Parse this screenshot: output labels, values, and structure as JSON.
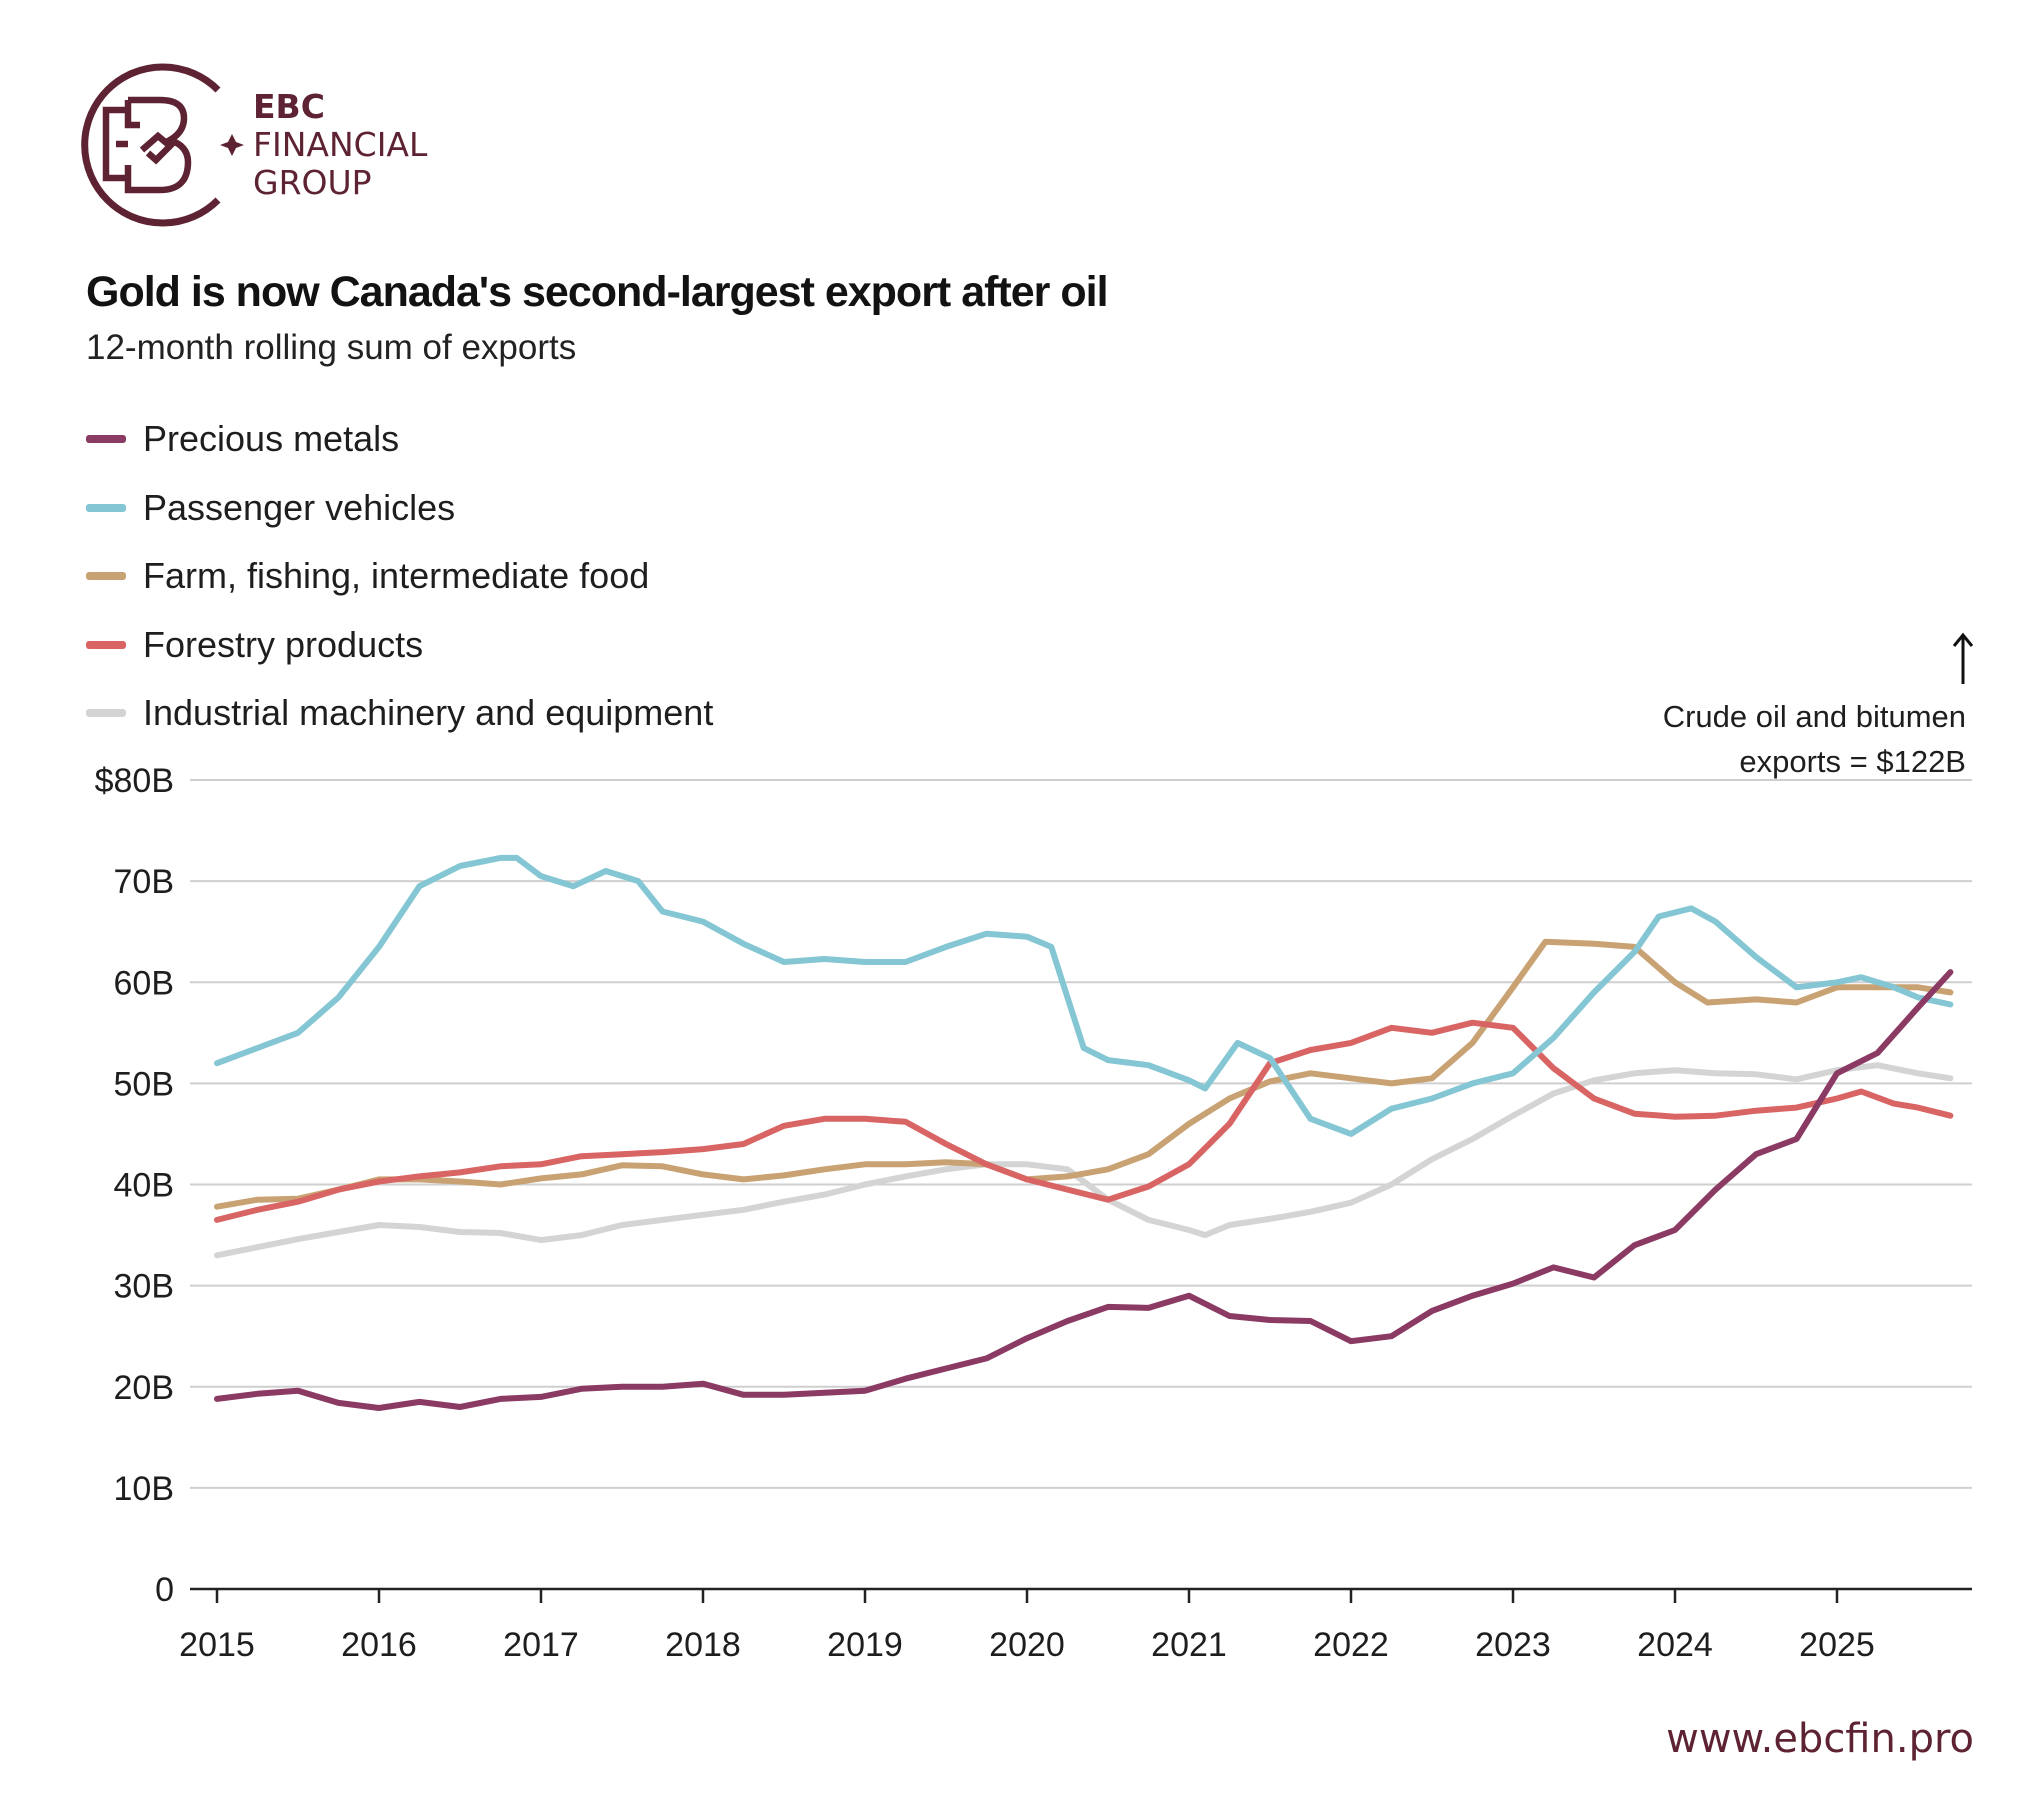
{
  "brand": {
    "line1": "EBC",
    "line2": "FINANCIAL",
    "line3": "GROUP",
    "color": "#5e2332",
    "icon": "ebc-logo-icon",
    "url": "www.ebcfin.pro"
  },
  "chart_data": {
    "type": "line",
    "title": "Gold is now Canada's second-largest export after oil",
    "subtitle": "12-month rolling sum of exports",
    "xlabel": "",
    "ylabel": "",
    "xlim": [
      2015,
      2025.85
    ],
    "ylim": [
      0,
      80
    ],
    "x_ticks": [
      2015,
      2016,
      2017,
      2018,
      2019,
      2020,
      2021,
      2022,
      2023,
      2024,
      2025
    ],
    "x_tick_labels": [
      "2015",
      "2016",
      "2017",
      "2018",
      "2019",
      "2020",
      "2021",
      "2022",
      "2023",
      "2024",
      "2025"
    ],
    "y_ticks": [
      0,
      10,
      20,
      30,
      40,
      50,
      60,
      70,
      80
    ],
    "y_tick_labels": [
      "0",
      "10B",
      "20B",
      "30B",
      "40B",
      "50B",
      "60B",
      "70B",
      "$80B"
    ],
    "grid": true,
    "legend_position": "top-left",
    "annotation": {
      "line1": "Crude oil and bitumen",
      "line2": "exports = $122B",
      "arrow": "up-arrow-icon"
    },
    "series": [
      {
        "name": "Precious metals",
        "color": "#8a3a63",
        "x": [
          2015,
          2015.25,
          2015.5,
          2015.75,
          2016,
          2016.25,
          2016.5,
          2016.75,
          2017,
          2017.25,
          2017.5,
          2017.75,
          2018,
          2018.25,
          2018.5,
          2018.75,
          2019,
          2019.25,
          2019.5,
          2019.75,
          2020,
          2020.25,
          2020.5,
          2020.75,
          2021,
          2021.25,
          2021.5,
          2021.75,
          2022,
          2022.25,
          2022.5,
          2022.75,
          2023,
          2023.25,
          2023.5,
          2023.75,
          2024,
          2024.25,
          2024.5,
          2024.75,
          2025,
          2025.25,
          2025.5,
          2025.7
        ],
        "values": [
          18.8,
          19.3,
          19.6,
          18.4,
          17.9,
          18.5,
          18.0,
          18.8,
          19.0,
          19.8,
          20.0,
          20.0,
          20.3,
          19.2,
          19.2,
          19.4,
          19.6,
          20.8,
          21.8,
          22.8,
          24.8,
          26.5,
          27.9,
          27.8,
          29.0,
          27.0,
          26.6,
          26.5,
          24.5,
          25.0,
          27.5,
          29.0,
          30.2,
          31.8,
          30.8,
          34.0,
          35.5,
          39.5,
          43.0,
          44.5,
          51.0,
          53.0,
          57.5,
          61.0
        ]
      },
      {
        "name": "Passenger vehicles",
        "color": "#84c6d3",
        "x": [
          2015,
          2015.25,
          2015.5,
          2015.75,
          2016,
          2016.25,
          2016.5,
          2016.75,
          2016.85,
          2017,
          2017.2,
          2017.4,
          2017.6,
          2017.75,
          2018,
          2018.25,
          2018.5,
          2018.75,
          2019,
          2019.25,
          2019.5,
          2019.75,
          2020,
          2020.15,
          2020.35,
          2020.5,
          2020.75,
          2021,
          2021.1,
          2021.3,
          2021.5,
          2021.75,
          2022,
          2022.25,
          2022.5,
          2022.75,
          2023,
          2023.25,
          2023.5,
          2023.75,
          2023.9,
          2024.1,
          2024.25,
          2024.5,
          2024.75,
          2025,
          2025.15,
          2025.35,
          2025.5,
          2025.7
        ],
        "values": [
          52.0,
          53.5,
          55.0,
          58.5,
          63.5,
          69.5,
          71.5,
          72.3,
          72.3,
          70.5,
          69.5,
          71.0,
          70.0,
          67.0,
          66.0,
          63.8,
          62.0,
          62.3,
          62.0,
          62.0,
          63.5,
          64.8,
          64.5,
          63.5,
          53.5,
          52.3,
          51.8,
          50.3,
          49.5,
          54.0,
          52.5,
          46.5,
          45.0,
          47.5,
          48.5,
          50.0,
          51.0,
          54.5,
          59.0,
          63.0,
          66.5,
          67.3,
          66.0,
          62.5,
          59.5,
          60.0,
          60.5,
          59.5,
          58.5,
          57.8
        ]
      },
      {
        "name": "Farm, fishing, intermediate food",
        "color": "#c9a273",
        "x": [
          2015,
          2015.25,
          2015.5,
          2015.75,
          2016,
          2016.25,
          2016.5,
          2016.75,
          2017,
          2017.25,
          2017.5,
          2017.75,
          2018,
          2018.25,
          2018.5,
          2018.75,
          2019,
          2019.25,
          2019.5,
          2019.75,
          2020,
          2020.25,
          2020.5,
          2020.75,
          2021,
          2021.25,
          2021.5,
          2021.75,
          2022,
          2022.25,
          2022.5,
          2022.75,
          2023,
          2023.2,
          2023.5,
          2023.75,
          2024,
          2024.2,
          2024.5,
          2024.75,
          2025,
          2025.25,
          2025.5,
          2025.7
        ],
        "values": [
          37.8,
          38.5,
          38.6,
          39.5,
          40.5,
          40.5,
          40.3,
          40.0,
          40.6,
          41.0,
          41.9,
          41.8,
          41.0,
          40.5,
          40.9,
          41.5,
          42.0,
          42.0,
          42.2,
          42.0,
          40.5,
          40.8,
          41.5,
          43.0,
          46.0,
          48.5,
          50.2,
          51.0,
          50.5,
          50.0,
          50.5,
          54.0,
          59.5,
          64.0,
          63.8,
          63.5,
          60.0,
          58.0,
          58.3,
          58.0,
          59.5,
          59.5,
          59.5,
          59.0
        ]
      },
      {
        "name": "Forestry products",
        "color": "#d96464",
        "x": [
          2015,
          2015.25,
          2015.5,
          2015.75,
          2016,
          2016.25,
          2016.5,
          2016.75,
          2017,
          2017.25,
          2017.5,
          2017.75,
          2018,
          2018.25,
          2018.5,
          2018.75,
          2019,
          2019.25,
          2019.5,
          2019.75,
          2020,
          2020.25,
          2020.5,
          2020.75,
          2021,
          2021.25,
          2021.5,
          2021.75,
          2022,
          2022.25,
          2022.5,
          2022.75,
          2023,
          2023.25,
          2023.5,
          2023.75,
          2024,
          2024.25,
          2024.5,
          2024.75,
          2025,
          2025.15,
          2025.35,
          2025.5,
          2025.7
        ],
        "values": [
          36.5,
          37.5,
          38.3,
          39.5,
          40.3,
          40.8,
          41.2,
          41.8,
          42.0,
          42.8,
          43.0,
          43.2,
          43.5,
          44.0,
          45.8,
          46.5,
          46.5,
          46.2,
          44.0,
          42.0,
          40.5,
          39.5,
          38.5,
          39.8,
          42.0,
          46.0,
          52.0,
          53.3,
          54.0,
          55.5,
          55.0,
          56.0,
          55.5,
          51.5,
          48.5,
          47.0,
          46.7,
          46.8,
          47.3,
          47.6,
          48.5,
          49.2,
          48.0,
          47.6,
          46.8
        ]
      },
      {
        "name": "Industrial machinery and equipment",
        "color": "#d4d4d4",
        "x": [
          2015,
          2015.25,
          2015.5,
          2015.75,
          2016,
          2016.25,
          2016.5,
          2016.75,
          2017,
          2017.25,
          2017.5,
          2017.75,
          2018,
          2018.25,
          2018.5,
          2018.75,
          2019,
          2019.25,
          2019.5,
          2019.75,
          2020,
          2020.25,
          2020.5,
          2020.75,
          2021,
          2021.1,
          2021.25,
          2021.5,
          2021.75,
          2022,
          2022.25,
          2022.5,
          2022.75,
          2023,
          2023.25,
          2023.5,
          2023.75,
          2024,
          2024.25,
          2024.5,
          2024.75,
          2025,
          2025.25,
          2025.5,
          2025.7
        ],
        "values": [
          33.0,
          33.8,
          34.6,
          35.3,
          36.0,
          35.8,
          35.3,
          35.2,
          34.5,
          35.0,
          36.0,
          36.5,
          37.0,
          37.5,
          38.3,
          39.0,
          40.0,
          40.8,
          41.5,
          42.0,
          42.0,
          41.5,
          38.5,
          36.5,
          35.5,
          35.0,
          36.0,
          36.6,
          37.3,
          38.2,
          40.0,
          42.5,
          44.5,
          46.8,
          49.0,
          50.3,
          51.0,
          51.3,
          51.0,
          50.9,
          50.4,
          51.3,
          51.8,
          51.0,
          50.5
        ]
      }
    ]
  }
}
